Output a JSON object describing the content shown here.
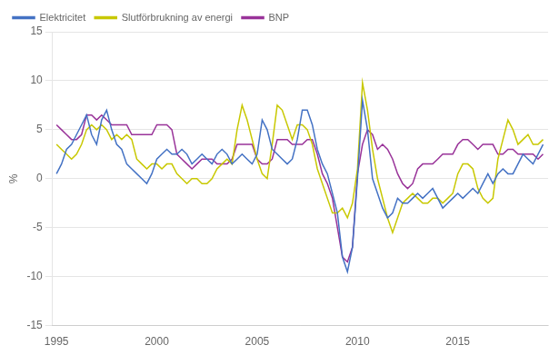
{
  "chart_data": {
    "type": "line",
    "ylabel": "%",
    "x": [
      1995.0,
      1995.25,
      1995.5,
      1995.75,
      1996.0,
      1996.25,
      1996.5,
      1996.75,
      1997.0,
      1997.25,
      1997.5,
      1997.75,
      1998.0,
      1998.25,
      1998.5,
      1998.75,
      1999.0,
      1999.25,
      1999.5,
      1999.75,
      2000.0,
      2000.25,
      2000.5,
      2000.75,
      2001.0,
      2001.25,
      2001.5,
      2001.75,
      2002.0,
      2002.25,
      2002.5,
      2002.75,
      2003.0,
      2003.25,
      2003.5,
      2003.75,
      2004.0,
      2004.25,
      2004.5,
      2004.75,
      2005.0,
      2005.25,
      2005.5,
      2005.75,
      2006.0,
      2006.25,
      2006.5,
      2006.75,
      2007.0,
      2007.25,
      2007.5,
      2007.75,
      2008.0,
      2008.25,
      2008.5,
      2008.75,
      2009.0,
      2009.25,
      2009.5,
      2009.75,
      2010.0,
      2010.25,
      2010.5,
      2010.75,
      2011.0,
      2011.25,
      2011.5,
      2011.75,
      2012.0,
      2012.25,
      2012.5,
      2012.75,
      2013.0,
      2013.25,
      2013.5,
      2013.75,
      2014.0,
      2014.25,
      2014.5,
      2014.75,
      2015.0,
      2015.25,
      2015.5,
      2015.75,
      2016.0,
      2016.25,
      2016.5,
      2016.75,
      2017.0,
      2017.25,
      2017.5,
      2017.75,
      2018.0,
      2018.25,
      2018.5,
      2018.75,
      2019.0,
      2019.25
    ],
    "series": [
      {
        "name": "Elektricitet",
        "color": "#4472C4",
        "values": [
          0.5,
          1.5,
          3.0,
          3.5,
          4.5,
          5.5,
          6.5,
          4.5,
          3.5,
          6.0,
          7.0,
          5.0,
          3.5,
          3.0,
          1.5,
          1.0,
          0.5,
          0.0,
          -0.5,
          0.5,
          2.0,
          2.5,
          3.0,
          2.5,
          2.5,
          3.0,
          2.5,
          1.5,
          2.0,
          2.5,
          2.0,
          1.5,
          2.5,
          3.0,
          2.5,
          1.5,
          2.0,
          2.5,
          2.0,
          1.5,
          2.5,
          6.0,
          5.0,
          3.0,
          2.5,
          2.0,
          1.5,
          2.0,
          4.0,
          7.0,
          7.0,
          5.5,
          3.0,
          1.5,
          0.5,
          -1.5,
          -3.5,
          -8.0,
          -9.5,
          -7.0,
          0.0,
          8.0,
          5.0,
          0.0,
          -1.5,
          -3.0,
          -4.0,
          -3.5,
          -2.0,
          -2.5,
          -2.5,
          -2.0,
          -1.5,
          -2.0,
          -1.5,
          -1.0,
          -2.0,
          -3.0,
          -2.5,
          -2.0,
          -1.5,
          -2.0,
          -1.5,
          -1.0,
          -1.5,
          -0.5,
          0.5,
          -0.5,
          0.5,
          1.0,
          0.5,
          0.5,
          1.5,
          2.5,
          2.0,
          1.5,
          2.5,
          3.5
        ]
      },
      {
        "name": "Slutförbrukning av energi",
        "color": "#c8c800",
        "values": [
          3.5,
          3.0,
          2.5,
          2.0,
          2.5,
          3.5,
          5.0,
          5.5,
          5.0,
          5.5,
          5.0,
          4.0,
          4.5,
          4.0,
          4.5,
          4.0,
          2.0,
          1.5,
          1.0,
          1.5,
          1.5,
          1.0,
          1.5,
          1.5,
          0.5,
          0.0,
          -0.5,
          0.0,
          0.0,
          -0.5,
          -0.5,
          0.0,
          1.0,
          1.5,
          2.0,
          1.5,
          5.0,
          7.5,
          6.0,
          4.0,
          2.0,
          0.5,
          0.0,
          3.5,
          7.5,
          7.0,
          5.5,
          4.0,
          5.5,
          5.5,
          5.0,
          3.5,
          1.0,
          -0.5,
          -2.0,
          -3.5,
          -3.5,
          -3.0,
          -4.0,
          -2.5,
          1.0,
          9.8,
          7.0,
          3.0,
          0.0,
          -2.0,
          -4.0,
          -5.5,
          -4.0,
          -2.5,
          -2.0,
          -1.5,
          -2.0,
          -2.5,
          -2.5,
          -2.0,
          -2.0,
          -2.5,
          -2.0,
          -1.5,
          0.5,
          1.5,
          1.5,
          1.0,
          -1.0,
          -2.0,
          -2.5,
          -2.0,
          2.0,
          4.0,
          6.0,
          5.0,
          3.5,
          4.0,
          4.5,
          3.5,
          3.5,
          4.0
        ]
      },
      {
        "name": "BNP",
        "color": "#993399",
        "values": [
          5.5,
          5.0,
          4.5,
          4.0,
          4.0,
          4.5,
          6.5,
          6.5,
          6.0,
          6.5,
          6.0,
          5.5,
          5.5,
          5.5,
          5.5,
          4.5,
          4.5,
          4.5,
          4.5,
          4.5,
          5.5,
          5.5,
          5.5,
          5.0,
          2.5,
          2.0,
          1.5,
          1.0,
          1.5,
          2.0,
          2.0,
          2.0,
          1.5,
          1.5,
          1.5,
          2.0,
          3.5,
          3.5,
          3.5,
          3.5,
          2.0,
          1.5,
          1.5,
          2.0,
          4.0,
          4.0,
          4.0,
          3.5,
          3.5,
          3.5,
          4.0,
          4.0,
          2.5,
          0.5,
          -0.5,
          -2.0,
          -5.0,
          -8.0,
          -8.5,
          -7.0,
          0.5,
          3.5,
          5.0,
          4.5,
          3.0,
          3.5,
          3.0,
          2.0,
          0.5,
          -0.5,
          -1.0,
          -0.5,
          1.0,
          1.5,
          1.5,
          1.5,
          2.0,
          2.5,
          2.5,
          2.5,
          3.5,
          4.0,
          4.0,
          3.5,
          3.0,
          3.5,
          3.5,
          3.5,
          2.5,
          2.5,
          3.0,
          3.0,
          2.5,
          2.5,
          2.5,
          2.5,
          2.0,
          2.5
        ]
      }
    ],
    "xlim": [
      1994.8,
      2019.5
    ],
    "xticks": [
      1995,
      2000,
      2005,
      2010,
      2015
    ],
    "ylim": [
      -15,
      15
    ],
    "yticks": [
      -15,
      -10,
      -5,
      0,
      5,
      10,
      15
    ],
    "grid": "y",
    "legend": "upper left"
  }
}
